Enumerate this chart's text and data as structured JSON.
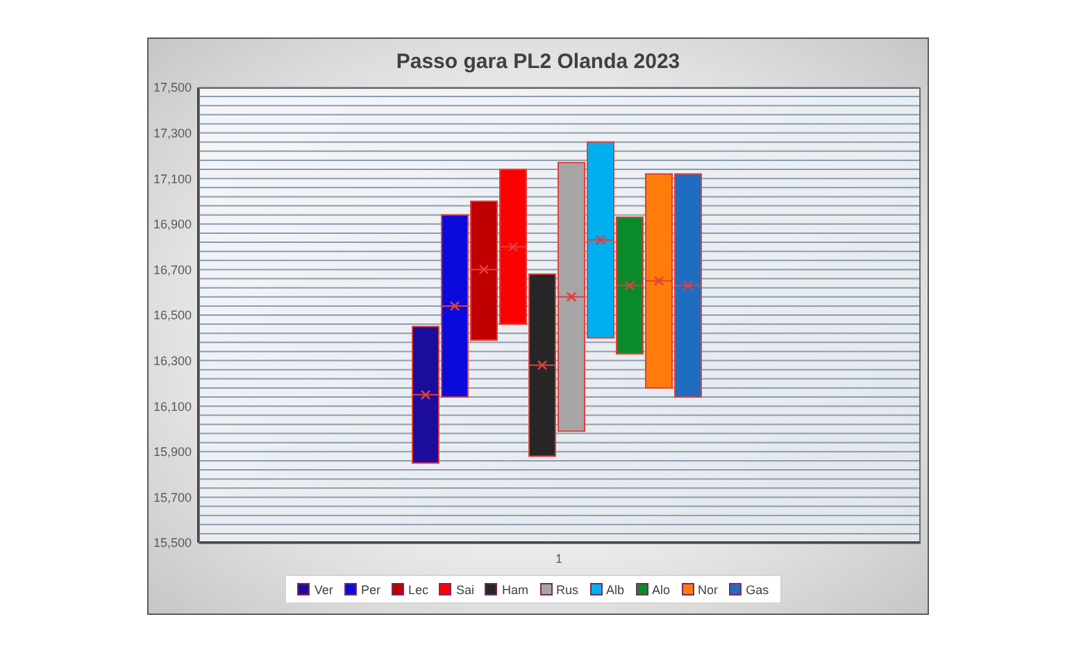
{
  "chart_data": {
    "type": "box",
    "title": "Passo gara PL2 Olanda 2023",
    "categories": [
      "1"
    ],
    "series": [
      {
        "name": "Ver",
        "color": "#1c0c9c",
        "boxes": [
          {
            "low": 15850,
            "q1": 15850,
            "median": 16150,
            "q3": 16450,
            "high": 16450,
            "mean": 16150
          }
        ]
      },
      {
        "name": "Per",
        "color": "#0a0adc",
        "boxes": [
          {
            "low": 16140,
            "q1": 16140,
            "median": 16540,
            "q3": 16940,
            "high": 16940,
            "mean": 16540
          }
        ]
      },
      {
        "name": "Lec",
        "color": "#c00000",
        "boxes": [
          {
            "low": 16390,
            "q1": 16390,
            "median": 16700,
            "q3": 17000,
            "high": 17000,
            "mean": 16700
          }
        ]
      },
      {
        "name": "Sai",
        "color": "#ff0000",
        "boxes": [
          {
            "low": 16460,
            "q1": 16460,
            "median": 16800,
            "q3": 17140,
            "high": 17140,
            "mean": 16800
          }
        ]
      },
      {
        "name": "Ham",
        "color": "#262626",
        "boxes": [
          {
            "low": 15880,
            "q1": 15880,
            "median": 16280,
            "q3": 16680,
            "high": 16680,
            "mean": 16280
          }
        ]
      },
      {
        "name": "Rus",
        "color": "#a6a6a6",
        "boxes": [
          {
            "low": 15990,
            "q1": 15990,
            "median": 16580,
            "q3": 17170,
            "high": 17170,
            "mean": 16580
          }
        ]
      },
      {
        "name": "Alb",
        "color": "#00b0f0",
        "boxes": [
          {
            "low": 16400,
            "q1": 16400,
            "median": 16830,
            "q3": 17260,
            "high": 17260,
            "mean": 16830
          }
        ]
      },
      {
        "name": "Alo",
        "color": "#0a8a2a",
        "boxes": [
          {
            "low": 16330,
            "q1": 16330,
            "median": 16630,
            "q3": 16930,
            "high": 16930,
            "mean": 16630
          }
        ]
      },
      {
        "name": "Nor",
        "color": "#ff7c0a",
        "boxes": [
          {
            "low": 16180,
            "q1": 16180,
            "median": 16650,
            "q3": 17120,
            "high": 17120,
            "mean": 16650
          }
        ]
      },
      {
        "name": "Gas",
        "color": "#1f6dc0",
        "boxes": [
          {
            "low": 16140,
            "q1": 16140,
            "median": 16630,
            "q3": 17120,
            "high": 17120,
            "mean": 16630
          }
        ]
      }
    ],
    "ylim": [
      15500,
      17500
    ],
    "yticks": [
      {
        "value": 15500,
        "label": "15,500"
      },
      {
        "value": 15540,
        "label": null
      },
      {
        "value": 15580,
        "label": null
      },
      {
        "value": 15620,
        "label": null
      },
      {
        "value": 15660,
        "label": null
      },
      {
        "value": 15700,
        "label": "15,700"
      },
      {
        "value": 15740,
        "label": null
      },
      {
        "value": 15780,
        "label": null
      },
      {
        "value": 15820,
        "label": null
      },
      {
        "value": 15860,
        "label": null
      },
      {
        "value": 15900,
        "label": "15,900"
      },
      {
        "value": 15940,
        "label": null
      },
      {
        "value": 15980,
        "label": null
      },
      {
        "value": 16020,
        "label": null
      },
      {
        "value": 16060,
        "label": null
      },
      {
        "value": 16100,
        "label": "16,100"
      },
      {
        "value": 16140,
        "label": null
      },
      {
        "value": 16180,
        "label": null
      },
      {
        "value": 16220,
        "label": null
      },
      {
        "value": 16260,
        "label": null
      },
      {
        "value": 16300,
        "label": "16,300"
      },
      {
        "value": 16340,
        "label": null
      },
      {
        "value": 16380,
        "label": null
      },
      {
        "value": 16420,
        "label": null
      },
      {
        "value": 16460,
        "label": null
      },
      {
        "value": 16500,
        "label": "16,500"
      },
      {
        "value": 16540,
        "label": null
      },
      {
        "value": 16580,
        "label": null
      },
      {
        "value": 16620,
        "label": null
      },
      {
        "value": 16660,
        "label": null
      },
      {
        "value": 16700,
        "label": "16,700"
      },
      {
        "value": 16740,
        "label": null
      },
      {
        "value": 16780,
        "label": null
      },
      {
        "value": 16820,
        "label": null
      },
      {
        "value": 16860,
        "label": null
      },
      {
        "value": 16900,
        "label": "16,900"
      },
      {
        "value": 16940,
        "label": null
      },
      {
        "value": 16980,
        "label": null
      },
      {
        "value": 17020,
        "label": null
      },
      {
        "value": 17060,
        "label": null
      },
      {
        "value": 17100,
        "label": "17,100"
      },
      {
        "value": 17140,
        "label": null
      },
      {
        "value": 17180,
        "label": null
      },
      {
        "value": 17220,
        "label": null
      },
      {
        "value": 17260,
        "label": null
      },
      {
        "value": 17300,
        "label": "17,300"
      },
      {
        "value": 17340,
        "label": null
      },
      {
        "value": 17380,
        "label": null
      },
      {
        "value": 17420,
        "label": null
      },
      {
        "value": 17460,
        "label": null
      },
      {
        "value": 17500,
        "label": "17,500"
      }
    ],
    "grid": "y",
    "legend": "bottom"
  }
}
